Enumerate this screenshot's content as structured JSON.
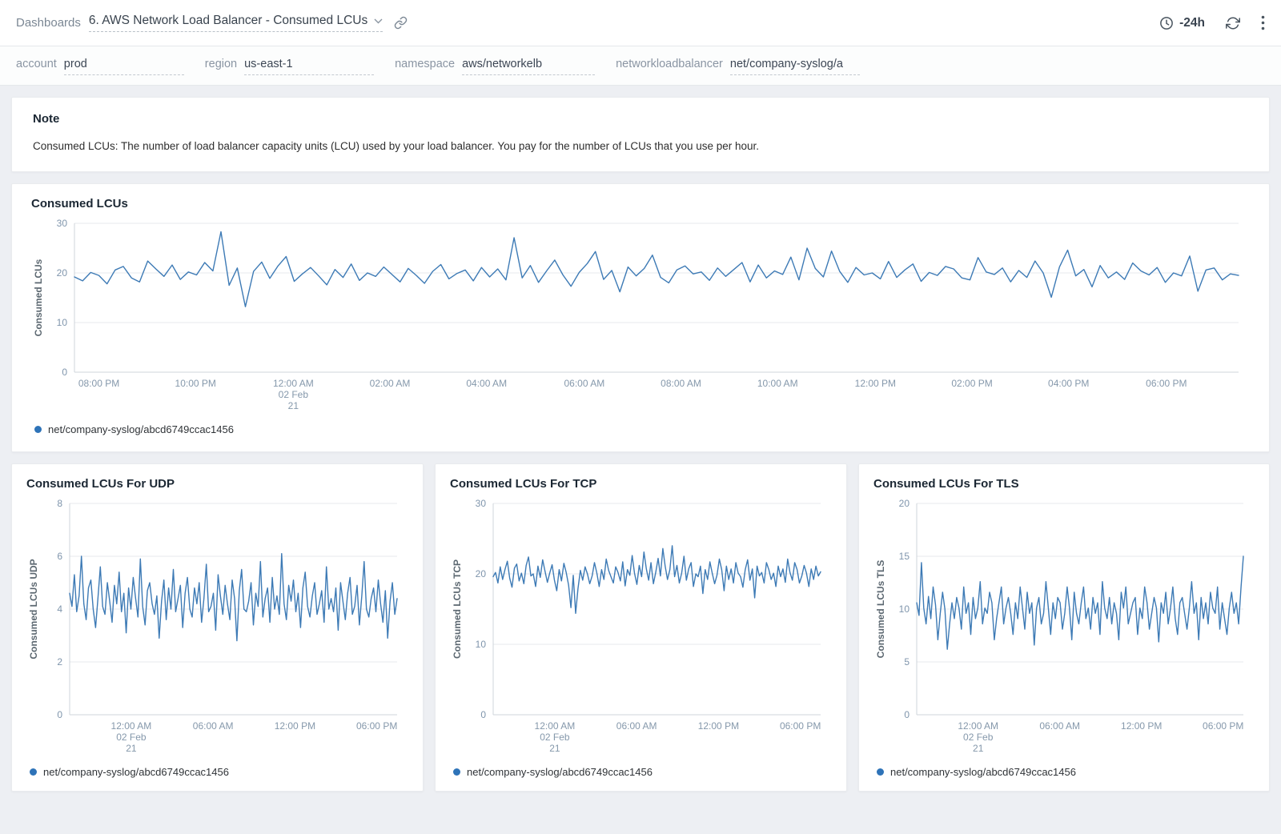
{
  "header": {
    "breadcrumb": "Dashboards",
    "title": "6. AWS Network Load Balancer - Consumed LCUs",
    "time_range": "-24h"
  },
  "filters": [
    {
      "label": "account",
      "value": "prod"
    },
    {
      "label": "region",
      "value": "us-east-1"
    },
    {
      "label": "namespace",
      "value": "aws/networkelb"
    },
    {
      "label": "networkloadbalancer",
      "value": "net/company-syslog/a"
    }
  ],
  "note": {
    "title": "Note",
    "body": "Consumed LCUs: The number of load balancer capacity units (LCU) used by your load balancer. You pay for the number of LCUs that you use per hour."
  },
  "colors": {
    "line": "#3d7ab5",
    "legend_dot": "#2e73b8",
    "grid": "#e7e9ec",
    "axis": "#cfd5db",
    "tick_text": "#8598ab"
  },
  "chart_data": [
    {
      "type": "line",
      "title": "Consumed LCUs",
      "ylabel": "Consumed LCUs",
      "ylim": [
        0,
        30
      ],
      "yticks": [
        0,
        10,
        20,
        30
      ],
      "legend": "net/company-syslog/abcd6749ccac1456",
      "line_color": "#3d7ab5",
      "xticks": [
        {
          "pos": 0.021,
          "label": "08:00 PM"
        },
        {
          "pos": 0.104,
          "label": "10:00 PM"
        },
        {
          "pos": 0.188,
          "label": "12:00 AM",
          "sub": [
            "02 Feb",
            "21"
          ]
        },
        {
          "pos": 0.271,
          "label": "02:00 AM"
        },
        {
          "pos": 0.354,
          "label": "04:00 AM"
        },
        {
          "pos": 0.438,
          "label": "06:00 AM"
        },
        {
          "pos": 0.521,
          "label": "08:00 AM"
        },
        {
          "pos": 0.604,
          "label": "10:00 AM"
        },
        {
          "pos": 0.688,
          "label": "12:00 PM"
        },
        {
          "pos": 0.771,
          "label": "02:00 PM"
        },
        {
          "pos": 0.854,
          "label": "04:00 PM"
        },
        {
          "pos": 0.938,
          "label": "06:00 PM"
        }
      ],
      "values": [
        19.2,
        18.4,
        20.1,
        19.5,
        17.8,
        20.6,
        21.3,
        19.0,
        18.2,
        22.4,
        20.8,
        19.3,
        21.6,
        18.7,
        20.2,
        19.6,
        22.1,
        20.4,
        28.3,
        17.5,
        21.0,
        13.2,
        20.3,
        22.2,
        18.9,
        21.4,
        23.3,
        18.3,
        19.8,
        21.1,
        19.4,
        17.6,
        20.7,
        19.1,
        21.8,
        18.5,
        20.0,
        19.3,
        21.2,
        19.7,
        18.2,
        20.9,
        19.5,
        17.9,
        20.3,
        21.7,
        18.8,
        19.9,
        20.6,
        18.4,
        21.1,
        19.2,
        20.8,
        18.6,
        27.1,
        19.0,
        21.5,
        18.1,
        20.4,
        22.6,
        19.6,
        17.3,
        20.1,
        21.9,
        24.3,
        18.7,
        20.5,
        16.2,
        21.2,
        19.4,
        20.9,
        23.6,
        19.1,
        18.0,
        20.6,
        21.4,
        19.8,
        20.2,
        18.5,
        21.0,
        19.3,
        20.7,
        22.1,
        18.2,
        21.6,
        19.0,
        20.4,
        19.7,
        23.2,
        18.6,
        25.0,
        20.9,
        19.2,
        24.4,
        20.3,
        18.1,
        21.1,
        19.6,
        20.0,
        18.8,
        22.3,
        19.1,
        20.6,
        21.8,
        18.3,
        20.1,
        19.5,
        21.3,
        20.8,
        19.0,
        18.6,
        23.1,
        20.2,
        19.7,
        21.0,
        18.2,
        20.5,
        19.1,
        22.4,
        20.0,
        15.1,
        21.2,
        24.6,
        19.4,
        20.7,
        17.2,
        21.5,
        19.0,
        20.2,
        18.7,
        22.0,
        20.4,
        19.6,
        21.1,
        18.1,
        20.0,
        19.4,
        23.4,
        16.3,
        20.6,
        21.0,
        18.6,
        19.8,
        19.5
      ]
    },
    {
      "type": "line",
      "title": "Consumed LCUs For UDP",
      "ylabel": "Consumed LCUs UDP",
      "ylim": [
        0,
        8
      ],
      "yticks": [
        0,
        2,
        4,
        6,
        8
      ],
      "legend": "net/company-syslog/abcd6749ccac1456",
      "line_color": "#3d7ab5",
      "xticks": [
        {
          "pos": 0.188,
          "label": "12:00 AM",
          "sub": [
            "02 Feb",
            "21"
          ]
        },
        {
          "pos": 0.438,
          "label": "06:00 AM"
        },
        {
          "pos": 0.688,
          "label": "12:00 PM"
        },
        {
          "pos": 0.938,
          "label": "06:00 PM"
        }
      ],
      "values": [
        4.6,
        4.1,
        5.3,
        3.9,
        4.5,
        6.0,
        4.2,
        3.6,
        4.8,
        5.1,
        4.0,
        3.3,
        4.4,
        5.6,
        4.1,
        3.8,
        5.0,
        4.3,
        3.5,
        4.9,
        4.2,
        5.4,
        3.9,
        4.6,
        3.1,
        4.8,
        4.0,
        5.2,
        4.4,
        3.7,
        5.9,
        4.1,
        3.4,
        4.7,
        5.0,
        4.2,
        3.8,
        4.5,
        2.9,
        4.3,
        5.1,
        3.6,
        4.8,
        4.0,
        5.5,
        3.9,
        4.4,
        4.9,
        3.3,
        4.6,
        5.2,
        4.0,
        3.7,
        4.8,
        4.2,
        5.0,
        3.5,
        4.4,
        5.7,
        3.9,
        4.1,
        4.6,
        3.2,
        5.3,
        4.5,
        3.8,
        4.9,
        4.2,
        3.6,
        5.1,
        4.4,
        2.8,
        4.7,
        5.5,
        4.0,
        3.9,
        4.3,
        5.0,
        3.4,
        4.6,
        4.1,
        5.8,
        3.7,
        4.4,
        4.8,
        3.5,
        5.2,
        4.0,
        4.5,
        3.8,
        6.1,
        4.2,
        3.6,
        4.9,
        4.3,
        5.1,
        3.9,
        4.6,
        3.3,
        4.8,
        5.4,
        4.1,
        3.7,
        4.5,
        5.0,
        3.8,
        4.2,
        4.7,
        3.5,
        5.6,
        4.0,
        4.4,
        3.9,
        4.8,
        3.2,
        5.0,
        4.3,
        3.6,
        4.6,
        5.2,
        3.8,
        4.1,
        4.9,
        3.4,
        4.5,
        5.8,
        4.0,
        3.7,
        4.4,
        4.8,
        3.9,
        5.1,
        4.2,
        3.5,
        4.7,
        2.9,
        4.3,
        5.0,
        3.8,
        4.4
      ]
    },
    {
      "type": "line",
      "title": "Consumed LCUs For TCP",
      "ylabel": "Consumed LCUs TCP",
      "ylim": [
        0,
        30
      ],
      "yticks": [
        0,
        10,
        20,
        30
      ],
      "legend": "net/company-syslog/abcd6749ccac1456",
      "line_color": "#3d7ab5",
      "xticks": [
        {
          "pos": 0.188,
          "label": "12:00 AM",
          "sub": [
            "02 Feb",
            "21"
          ]
        },
        {
          "pos": 0.438,
          "label": "06:00 AM"
        },
        {
          "pos": 0.688,
          "label": "12:00 PM"
        },
        {
          "pos": 0.938,
          "label": "06:00 PM"
        }
      ],
      "values": [
        19.6,
        20.2,
        18.7,
        21.0,
        19.2,
        20.6,
        21.8,
        19.4,
        18.1,
        20.8,
        21.4,
        19.0,
        20.1,
        18.6,
        21.2,
        22.4,
        19.7,
        20.0,
        18.2,
        21.1,
        19.5,
        22.0,
        20.4,
        18.8,
        20.1,
        21.3,
        19.1,
        17.6,
        20.6,
        19.0,
        21.5,
        20.2,
        18.4,
        15.2,
        19.8,
        14.4,
        17.9,
        20.5,
        19.1,
        21.0,
        20.0,
        18.6,
        19.7,
        21.6,
        20.1,
        18.2,
        20.6,
        19.2,
        22.1,
        20.5,
        19.6,
        18.7,
        21.0,
        20.2,
        19.0,
        21.7,
        18.3,
        20.6,
        19.8,
        22.6,
        20.1,
        18.5,
        21.2,
        19.6,
        23.1,
        20.7,
        19.1,
        21.6,
        18.6,
        20.2,
        22.2,
        19.7,
        23.6,
        21.1,
        19.2,
        20.6,
        24.0,
        19.6,
        21.2,
        18.7,
        20.1,
        22.5,
        19.1,
        20.7,
        21.6,
        18.2,
        20.0,
        19.6,
        21.1,
        17.2,
        20.6,
        19.2,
        21.7,
        20.1,
        18.6,
        19.8,
        22.1,
        20.6,
        17.6,
        21.1,
        19.2,
        20.7,
        18.7,
        21.6,
        20.1,
        19.6,
        18.1,
        20.6,
        22.0,
        19.1,
        20.7,
        16.6,
        21.1,
        19.7,
        20.2,
        18.7,
        21.6,
        20.6,
        19.2,
        20.1,
        18.2,
        21.1,
        19.6,
        20.7,
        18.8,
        22.1,
        20.2,
        19.1,
        21.6,
        20.6,
        18.7,
        19.7,
        21.2,
        20.1,
        18.2,
        20.7,
        19.2,
        21.1,
        19.7,
        20.3
      ]
    },
    {
      "type": "line",
      "title": "Consumed LCUs For TLS",
      "ylabel": "Consumed LCUs TLS",
      "ylim": [
        0,
        20
      ],
      "yticks": [
        0,
        5,
        10,
        15,
        20
      ],
      "legend": "net/company-syslog/abcd6749ccac1456",
      "line_color": "#3d7ab5",
      "xticks": [
        {
          "pos": 0.188,
          "label": "12:00 AM",
          "sub": [
            "02 Feb",
            "21"
          ]
        },
        {
          "pos": 0.438,
          "label": "06:00 AM"
        },
        {
          "pos": 0.688,
          "label": "12:00 PM"
        },
        {
          "pos": 0.938,
          "label": "06:00 PM"
        }
      ],
      "values": [
        10.6,
        9.4,
        14.4,
        10.1,
        8.6,
        11.2,
        9.1,
        12.1,
        10.4,
        7.1,
        9.6,
        11.6,
        10.0,
        6.2,
        8.6,
        10.6,
        9.1,
        11.1,
        10.1,
        8.1,
        12.1,
        9.6,
        10.6,
        7.6,
        11.1,
        9.1,
        10.1,
        12.6,
        8.6,
        10.1,
        9.6,
        11.6,
        10.6,
        7.1,
        9.1,
        10.6,
        12.1,
        8.6,
        10.1,
        11.1,
        9.6,
        7.6,
        10.6,
        9.1,
        12.1,
        10.1,
        8.1,
        11.6,
        9.6,
        10.6,
        6.6,
        10.1,
        11.1,
        8.6,
        9.6,
        12.6,
        10.1,
        7.6,
        10.6,
        9.1,
        11.1,
        10.6,
        8.1,
        9.6,
        12.1,
        10.1,
        7.1,
        11.6,
        9.6,
        8.6,
        10.6,
        12.1,
        9.1,
        10.1,
        8.1,
        11.1,
        9.6,
        10.6,
        7.6,
        12.6,
        10.1,
        9.1,
        11.1,
        8.6,
        10.6,
        9.6,
        7.1,
        11.6,
        10.1,
        12.1,
        8.6,
        9.6,
        10.6,
        11.1,
        7.6,
        10.1,
        9.1,
        12.1,
        10.6,
        8.1,
        9.6,
        11.1,
        10.1,
        6.9,
        10.6,
        9.6,
        11.6,
        8.6,
        10.1,
        12.1,
        9.1,
        7.6,
        10.6,
        11.1,
        9.6,
        8.1,
        10.1,
        12.6,
        9.6,
        10.6,
        7.1,
        11.1,
        9.1,
        10.6,
        8.6,
        11.6,
        10.1,
        9.6,
        12.1,
        8.1,
        10.6,
        9.1,
        7.6,
        10.1,
        11.6,
        9.6,
        10.6,
        8.6,
        12.1,
        15.0
      ]
    }
  ]
}
